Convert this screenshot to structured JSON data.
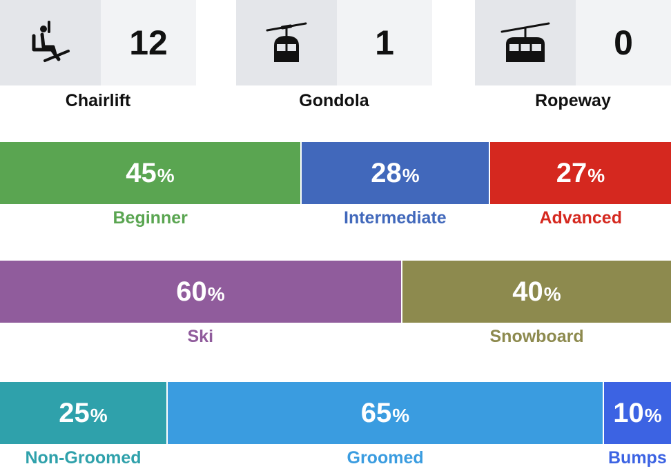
{
  "lifts": [
    {
      "icon": "chairlift-icon",
      "count": "12",
      "label": "Chairlift"
    },
    {
      "icon": "gondola-icon",
      "count": "1",
      "label": "Gondola"
    },
    {
      "icon": "ropeway-icon",
      "count": "0",
      "label": "Ropeway"
    }
  ],
  "chart_data": [
    {
      "type": "bar",
      "stacked": true,
      "categories": [
        "Beginner",
        "Intermediate",
        "Advanced"
      ],
      "values": [
        45,
        28,
        27
      ],
      "value_suffix": "%",
      "colors": [
        "#5aa551",
        "#4168bb",
        "#d5281f"
      ]
    },
    {
      "type": "bar",
      "stacked": true,
      "categories": [
        "Ski",
        "Snowboard"
      ],
      "values": [
        60,
        40
      ],
      "value_suffix": "%",
      "colors": [
        "#905c9c",
        "#8d8a4e"
      ]
    },
    {
      "type": "bar",
      "stacked": true,
      "categories": [
        "Non-Groomed",
        "Groomed",
        "Bumps"
      ],
      "values": [
        25,
        65,
        10
      ],
      "value_suffix": "%",
      "colors": [
        "#2fa1ab",
        "#3a9ce0",
        "#3c63e3"
      ]
    }
  ]
}
